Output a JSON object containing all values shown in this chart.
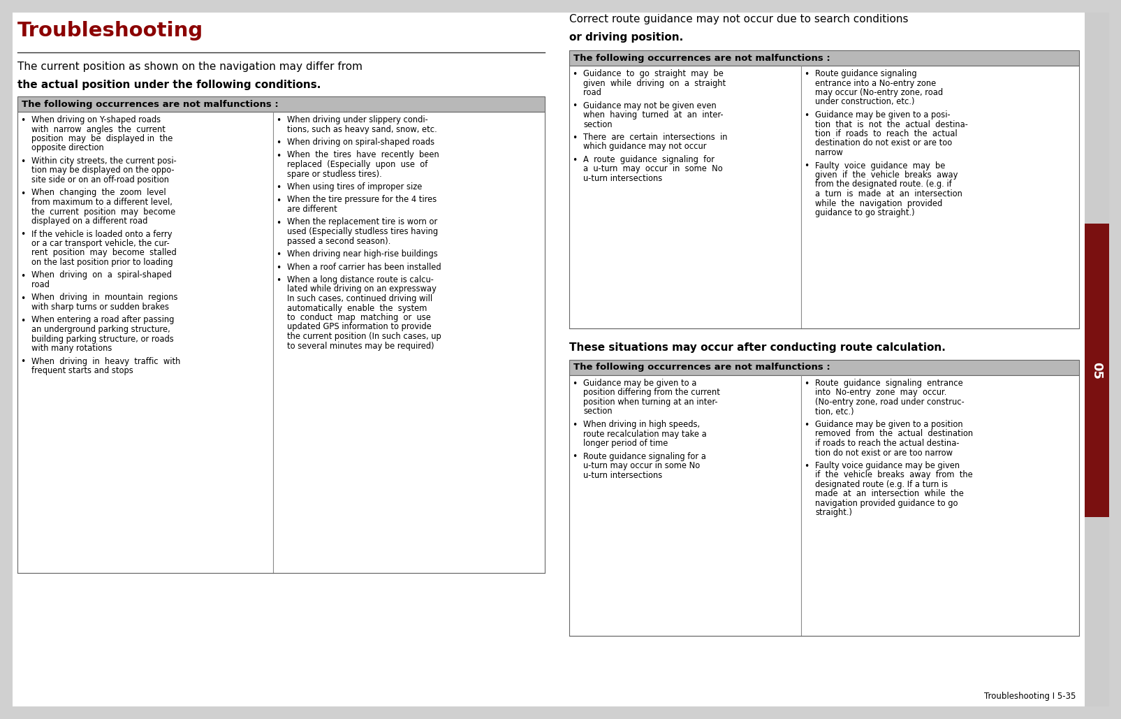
{
  "title": "Troubleshooting",
  "title_color": "#8B0000",
  "page_bg": "#d0d0d0",
  "header_bg": "#b8b8b8",
  "sidebar_color": "#7a1010",
  "footer_text": "Troubleshooting I 5-35",
  "left_col1_items": [
    "When driving on Y-shaped roads\nwith  narrow  angles  the  current\nposition  may  be  displayed in  the\nopposite direction",
    "Within city streets, the current posi-\ntion may be displayed on the oppo-\nsite side or on an off-road position",
    "When  changing  the  zoom  level\nfrom maximum to a different level,\nthe  current  position  may  become\ndisplayed on a different road",
    "If the vehicle is loaded onto a ferry\nor a car transport vehicle, the cur-\nrent  position  may  become  stalled\non the last position prior to loading",
    "When  driving  on  a  spiral-shaped\nroad",
    "When  driving  in  mountain  regions\nwith sharp turns or sudden brakes",
    "When entering a road after passing\nan underground parking structure,\nbuilding parking structure, or roads\nwith many rotations",
    "When  driving  in  heavy  traffic  with\nfrequent starts and stops"
  ],
  "left_col2_items": [
    "When driving under slippery condi-\ntions, such as heavy sand, snow, etc.",
    "When driving on spiral-shaped roads",
    "When  the  tires  have  recently  been\nreplaced  (Especially  upon  use  of\nspare or studless tires).",
    "When using tires of improper size",
    "When the tire pressure for the 4 tires\nare different",
    "When the replacement tire is worn or\nused (Especially studless tires having\npassed a second season).",
    "When driving near high-rise buildings",
    "When a roof carrier has been installed",
    "When a long distance route is calcu-\nlated while driving on an expressway\nIn such cases, continued driving will\nautomatically  enable  the  system\nto  conduct  map  matching  or  use\nupdated GPS information to provide\nthe current position (In such cases, up\nto several minutes may be required)"
  ],
  "mid_col1_items": [
    "Guidance  to  go  straight  may  be\ngiven  while  driving  on  a  straight\nroad",
    "Guidance may not be given even\nwhen  having  turned  at  an  inter-\nsection",
    "There  are  certain  intersections  in\nwhich guidance may not occur",
    "A  route  guidance  signaling  for\na  u-turn  may  occur  in  some  No\nu-turn intersections"
  ],
  "mid_col2_items": [
    "Route guidance signaling\nentrance into a No-entry zone\nmay occur (No-entry zone, road\nunder construction, etc.)",
    "Guidance may be given to a posi-\ntion  that  is  not  the  actual  destina-\ntion  if  roads  to  reach  the  actual\ndestination do not exist or are too\nnarrow",
    "Faulty  voice  guidance  may  be\ngiven  if  the  vehicle  breaks  away\nfrom the designated route. (e.g. if\na  turn  is  made  at  an  intersection\nwhile  the  navigation  provided\nguidance to go straight.)"
  ],
  "bot_col1_items": [
    "Guidance may be given to a\nposition differing from the current\nposition when turning at an inter-\nsection",
    "When driving in high speeds,\nroute recalculation may take a\nlonger period of time",
    "Route guidance signaling for a\nu-turn may occur in some No\nu-turn intersections"
  ],
  "bot_col2_items": [
    "Route  guidance  signaling  entrance\ninto  No-entry  zone  may  occur.\n(No-entry zone, road under construc-\ntion, etc.)",
    "Guidance may be given to a position\nremoved  from  the  actual  destination\nif roads to reach the actual destina-\ntion do not exist or are too narrow",
    "Faulty voice guidance may be given\nif  the  vehicle  breaks  away  from  the\ndesignated route (e.g. If a turn is\nmade  at  an  intersection  while  the\nnavigation provided guidance to go\nstraight.)"
  ]
}
